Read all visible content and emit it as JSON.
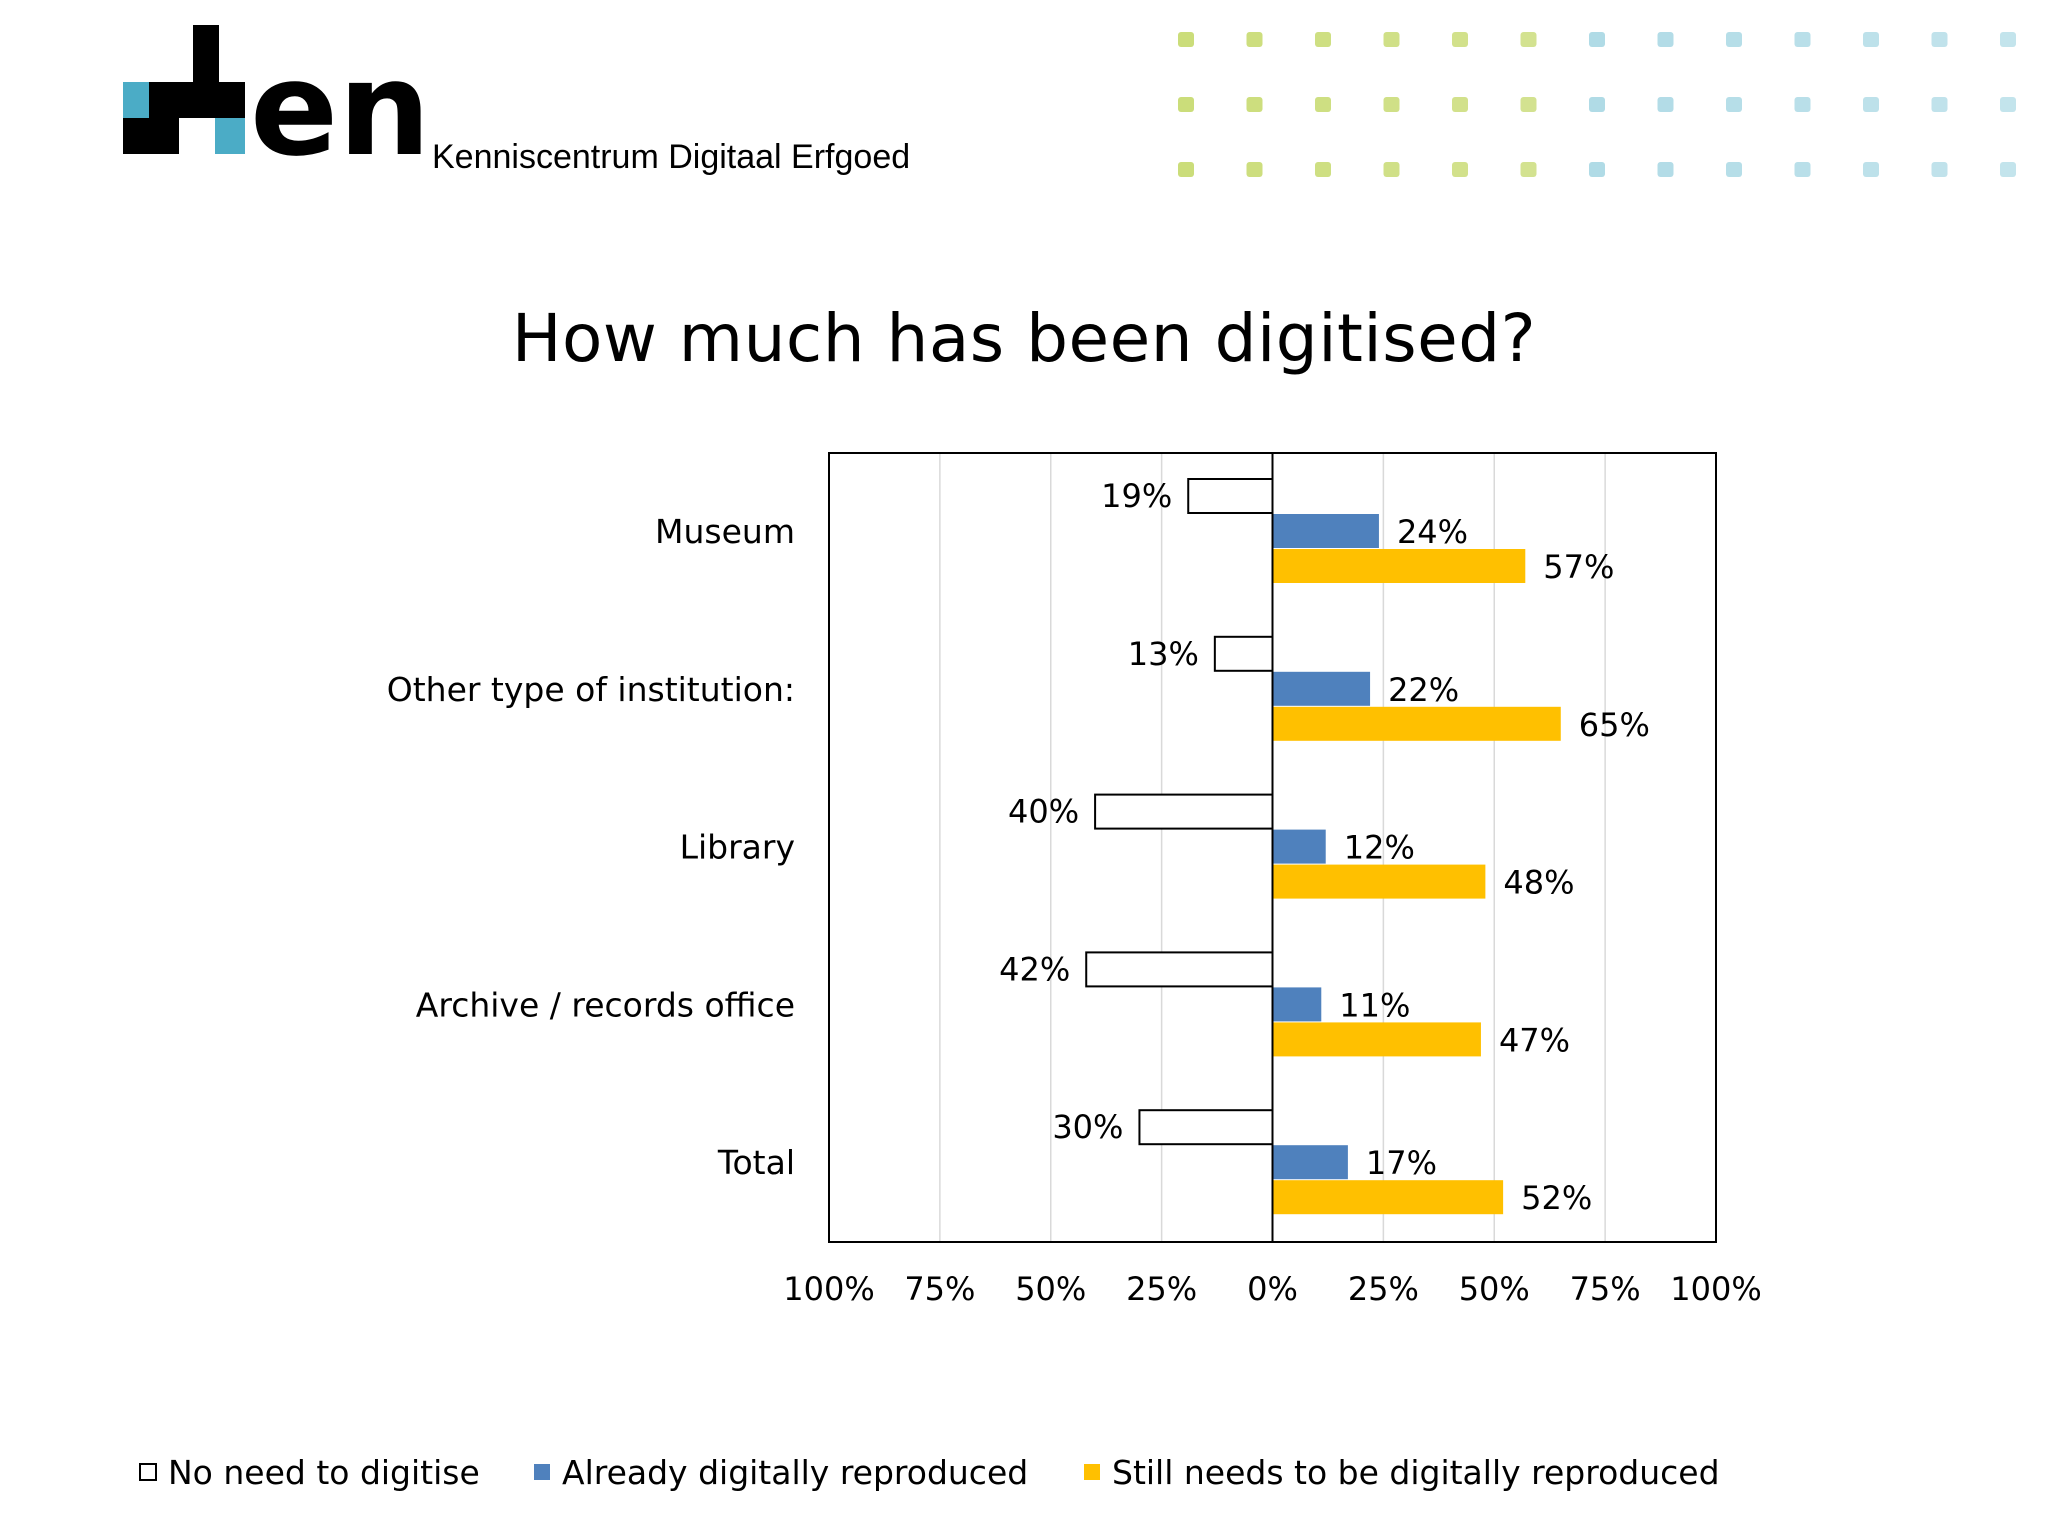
{
  "header": {
    "logo_text": "den",
    "subtitle": "Kenniscentrum Digitaal Erfgoed"
  },
  "colors": {
    "blue": "#4f81bd",
    "yellow": "#ffc000",
    "logo_teal": "#4bacc6",
    "dot_green": "#c5d96b",
    "dot_teal": "#92cddc"
  },
  "chart_data": {
    "type": "bar",
    "orientation": "horizontal-diverging",
    "title": "How much has been digitised?",
    "categories": [
      "Museum",
      "Other type of institution:",
      "Library",
      "Archive / records office",
      "Total"
    ],
    "series": [
      {
        "name": "No need to digitise",
        "side": "left",
        "color": "#ffffff",
        "values": [
          19,
          13,
          40,
          42,
          30
        ],
        "labels": [
          "19%",
          "13%",
          "40%",
          "42%",
          "30%"
        ]
      },
      {
        "name": "Already digitally reproduced",
        "side": "right",
        "color": "#4f81bd",
        "values": [
          24,
          22,
          12,
          11,
          17
        ],
        "labels": [
          "24%",
          "22%",
          "12%",
          "11%",
          "17%"
        ]
      },
      {
        "name": "Still needs to be digitally reproduced",
        "side": "right",
        "color": "#ffc000",
        "values": [
          57,
          65,
          48,
          47,
          52
        ],
        "labels": [
          "57%",
          "65%",
          "48%",
          "47%",
          "52%"
        ]
      }
    ],
    "x_ticks": [
      "100%",
      "75%",
      "50%",
      "25%",
      "0%",
      "25%",
      "50%",
      "75%",
      "100%"
    ],
    "xlim": [
      -100,
      100
    ],
    "grid": true,
    "legend_position": "bottom"
  }
}
